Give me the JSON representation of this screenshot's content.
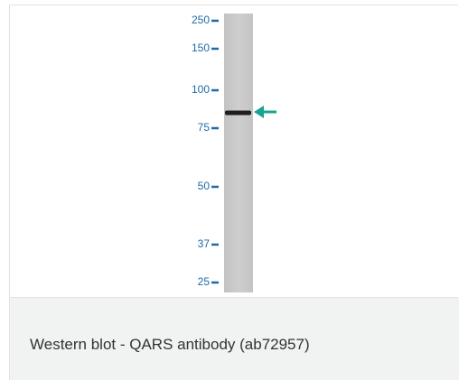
{
  "figure": {
    "markers": [
      "250",
      "150",
      "100",
      "75",
      "50",
      "37",
      "25"
    ],
    "caption": "Western blot - QARS antibody (ab72957)"
  }
}
